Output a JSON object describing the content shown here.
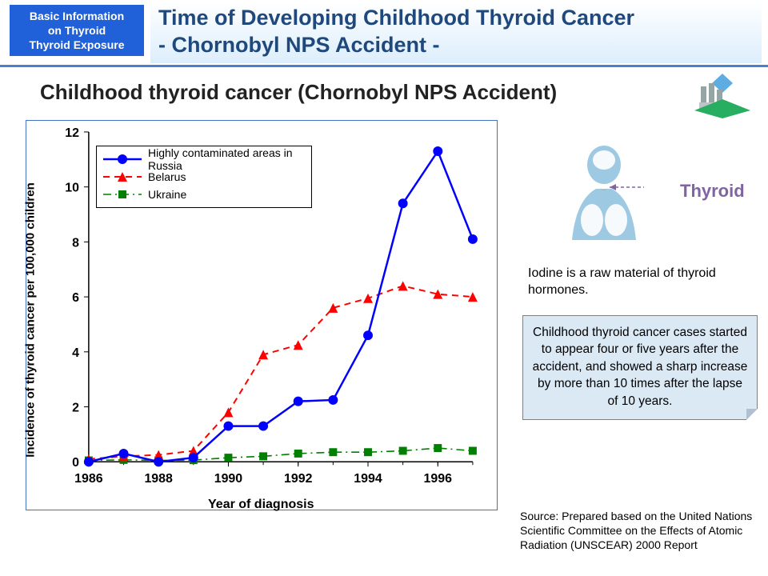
{
  "header": {
    "badge_l1": "Basic Information",
    "badge_l2": "on Thyroid",
    "badge_l3": "Thyroid Exposure",
    "title_l1": "Time of Developing Childhood Thyroid Cancer",
    "title_l2": "- Chornobyl NPS Accident -"
  },
  "subtitle": "Childhood thyroid cancer (Chornobyl NPS Accident)",
  "thyroid_label": "Thyroid",
  "iodine_text": "Iodine is a raw material of thyroid hormones.",
  "info_box": "Childhood thyroid cancer cases started to appear four or five years after the accident, and showed a sharp increase by more than 10 times after the lapse of 10 years.",
  "source_text": "Source: Prepared based on the United Nations Scientific Committee on the Effects of Atomic Radiation (UNSCEAR) 2000 Report",
  "chart": {
    "type": "line",
    "xlabel": "Year of diagnosis",
    "ylabel": "Incidence of thyroid cancer per 100,000 children",
    "xlim": [
      1986,
      1997
    ],
    "ylim": [
      0,
      12
    ],
    "ytick_step": 2,
    "xticks": [
      1986,
      1988,
      1990,
      1992,
      1994,
      1996
    ],
    "xtick_labels": [
      "1986",
      "1988",
      "1990",
      "1992",
      "1994",
      "1996"
    ],
    "x_all": [
      1986,
      1987,
      1988,
      1989,
      1990,
      1991,
      1992,
      1993,
      1994,
      1995,
      1996,
      1997
    ],
    "tick_fontsize": 16,
    "background_color": "#ffffff",
    "border_color": "#4472c4",
    "axis_color": "#000000",
    "series": {
      "russia": {
        "label": "Highly contaminated areas in Russia",
        "color": "#0000ff",
        "line_style": "solid",
        "line_width": 2.5,
        "marker": "circle",
        "marker_size": 6,
        "values": [
          0.0,
          0.3,
          0.0,
          0.15,
          1.3,
          1.3,
          2.2,
          2.25,
          4.6,
          9.4,
          11.3,
          8.1
        ]
      },
      "belarus": {
        "label": "Belarus",
        "color": "#ff0000",
        "line_style": "dashed",
        "line_width": 2,
        "marker": "triangle",
        "marker_size": 6,
        "values": [
          0.1,
          0.2,
          0.25,
          0.4,
          1.8,
          3.9,
          4.25,
          5.6,
          5.95,
          6.4,
          6.1,
          6.0
        ]
      },
      "ukraine": {
        "label": "Ukraine",
        "color": "#008000",
        "line_style": "dashdot",
        "line_width": 1.6,
        "marker": "square",
        "marker_size": 5,
        "values": [
          0.05,
          0.07,
          0.05,
          0.06,
          0.15,
          0.2,
          0.3,
          0.35,
          0.35,
          0.4,
          0.5,
          0.4
        ]
      }
    },
    "legend_order": [
      "russia",
      "belarus",
      "ukraine"
    ]
  },
  "colors": {
    "badge_bg": "#2060d8",
    "title_text": "#1f497d",
    "title_bg_grad_top": "#ffffff",
    "title_bg_grad_bot": "#dceefc",
    "divider": "#4682c8",
    "info_bg": "#dbe9f5",
    "info_border": "#808080",
    "thyroid_label": "#8064a2"
  }
}
